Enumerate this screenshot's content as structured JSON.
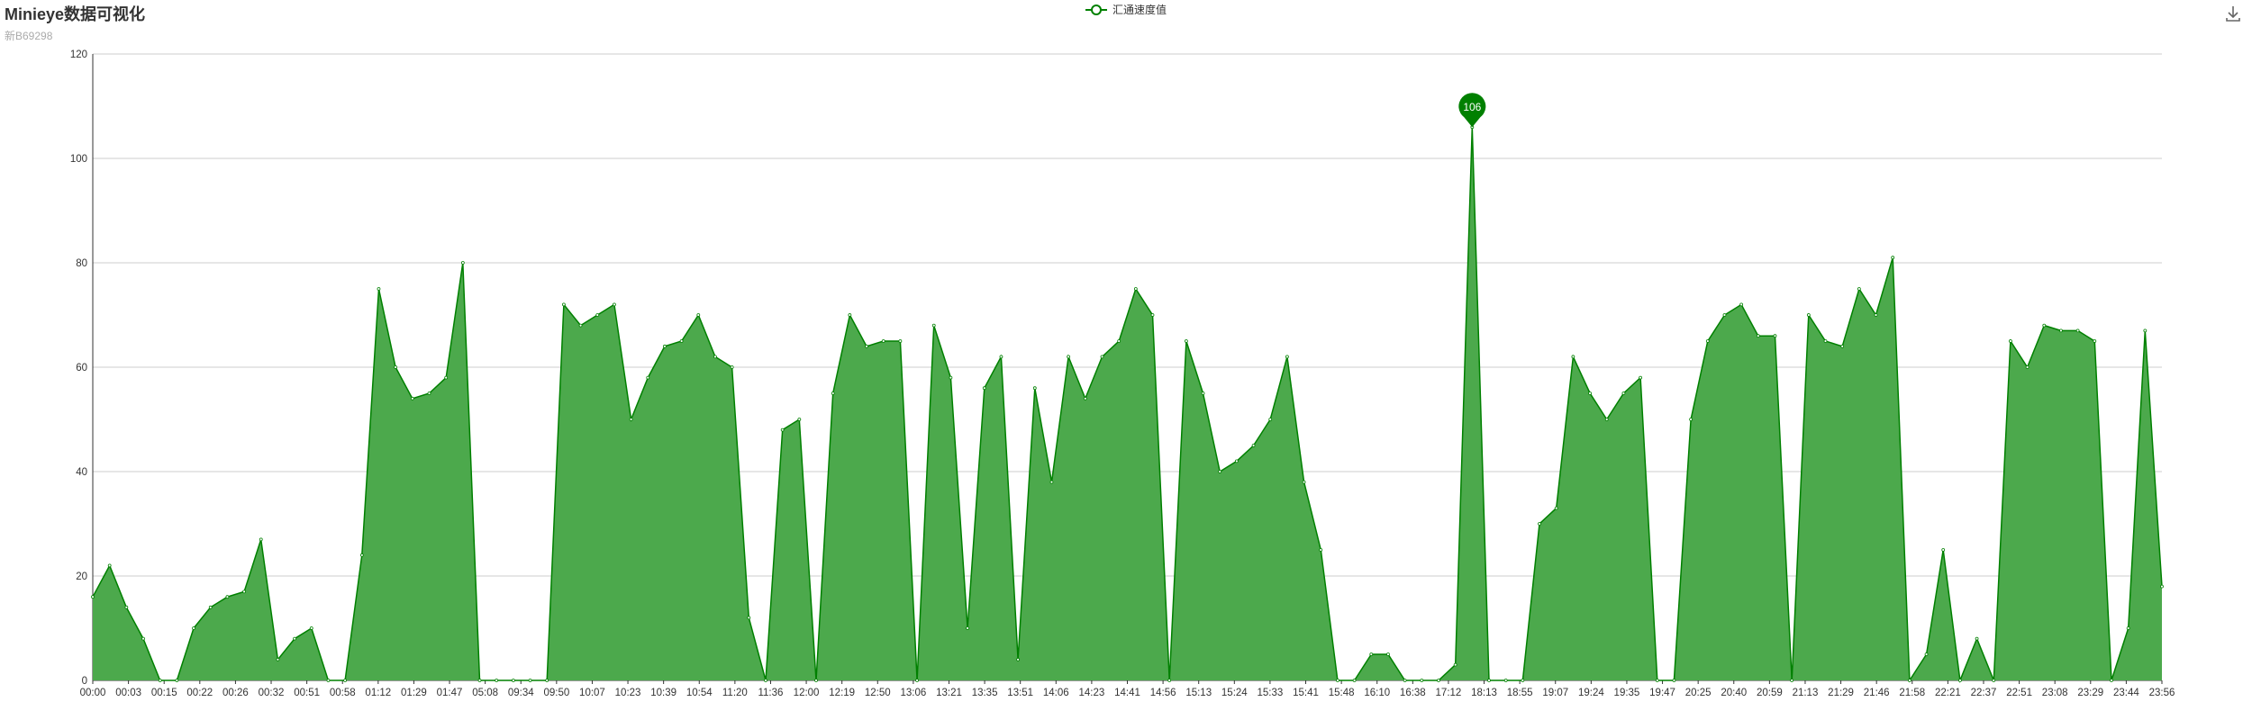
{
  "page": {
    "title": "Minieye数据可视化",
    "subtitle": "新B69298"
  },
  "legend": {
    "label": "汇通速度值"
  },
  "toolbar": {
    "download_icon": "download-icon"
  },
  "colors": {
    "series": "#008000",
    "area_fill": "#4ca94c",
    "grid": "#cccccc",
    "axis": "#333333"
  },
  "chart_data": {
    "type": "area",
    "title": "Minieye数据可视化",
    "subtitle": "新B69298",
    "xlabel": "",
    "ylabel": "",
    "ylim": [
      0,
      120
    ],
    "y_ticks": [
      0,
      20,
      40,
      60,
      80,
      100,
      120
    ],
    "grid": true,
    "legend_position": "top-center",
    "x_tick_labels": [
      "00:00",
      "00:03",
      "00:15",
      "00:22",
      "00:26",
      "00:32",
      "00:51",
      "00:58",
      "01:12",
      "01:29",
      "01:47",
      "05:08",
      "09:34",
      "09:50",
      "10:07",
      "10:23",
      "10:39",
      "10:54",
      "11:20",
      "11:36",
      "12:00",
      "12:19",
      "12:50",
      "13:06",
      "13:21",
      "13:35",
      "13:51",
      "14:06",
      "14:23",
      "14:41",
      "14:56",
      "15:13",
      "15:24",
      "15:33",
      "15:41",
      "15:48",
      "16:10",
      "16:38",
      "17:12",
      "18:13",
      "18:55",
      "19:07",
      "19:24",
      "19:35",
      "19:47",
      "20:25",
      "20:40",
      "20:59",
      "21:13",
      "21:29",
      "21:46",
      "21:58",
      "22:21",
      "22:37",
      "22:51",
      "23:08",
      "23:29",
      "23:44",
      "23:56"
    ],
    "series": [
      {
        "name": "汇通速度值",
        "values": [
          16,
          22,
          14,
          8,
          0,
          0,
          10,
          14,
          16,
          17,
          27,
          4,
          8,
          10,
          0,
          0,
          24,
          75,
          60,
          54,
          55,
          58,
          80,
          0,
          0,
          0,
          0,
          0,
          72,
          68,
          70,
          72,
          50,
          58,
          64,
          65,
          70,
          62,
          60,
          12,
          0,
          48,
          50,
          0,
          55,
          70,
          64,
          65,
          65,
          0,
          68,
          58,
          10,
          56,
          62,
          4,
          56,
          38,
          62,
          54,
          62,
          65,
          75,
          70,
          0,
          65,
          55,
          40,
          42,
          45,
          50,
          62,
          38,
          25,
          0,
          0,
          5,
          5,
          0,
          0,
          0,
          3,
          106,
          0,
          0,
          0,
          30,
          33,
          62,
          55,
          50,
          55,
          58,
          0,
          0,
          50,
          65,
          70,
          72,
          66,
          66,
          0,
          70,
          65,
          64,
          75,
          70,
          81,
          0,
          5,
          25,
          0,
          8,
          0,
          65,
          60,
          68,
          67,
          67,
          65,
          0,
          10,
          67,
          18
        ],
        "peak": {
          "value": 106,
          "label": "106"
        }
      }
    ]
  }
}
